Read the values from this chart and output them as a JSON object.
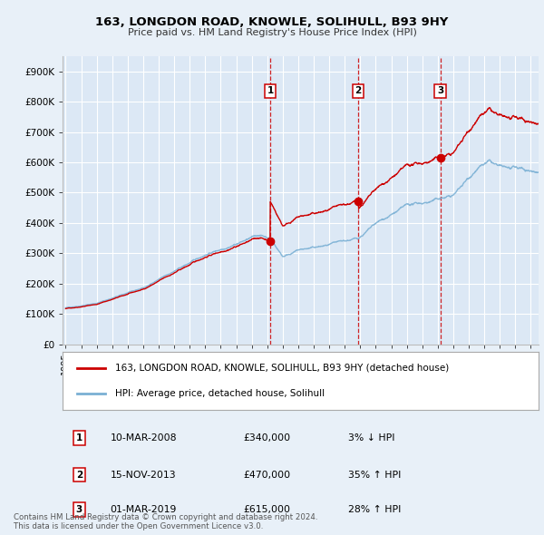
{
  "title": "163, LONGDON ROAD, KNOWLE, SOLIHULL, B93 9HY",
  "subtitle": "Price paid vs. HM Land Registry's House Price Index (HPI)",
  "ylabel_ticks": [
    "£0",
    "£100K",
    "£200K",
    "£300K",
    "£400K",
    "£500K",
    "£600K",
    "£700K",
    "£800K",
    "£900K"
  ],
  "ytick_values": [
    0,
    100000,
    200000,
    300000,
    400000,
    500000,
    600000,
    700000,
    800000,
    900000
  ],
  "ylim": [
    0,
    950000
  ],
  "xlim_start": 1994.8,
  "xlim_end": 2025.5,
  "background_color": "#e8f0f8",
  "plot_bg_color": "#dce8f5",
  "grid_color": "#ffffff",
  "transactions": [
    {
      "num": 1,
      "date": "10-MAR-2008",
      "price": 340000,
      "year": 2008.19,
      "pct": "3%",
      "dir": "↓"
    },
    {
      "num": 2,
      "date": "15-NOV-2013",
      "price": 470000,
      "year": 2013.87,
      "pct": "35%",
      "dir": "↑"
    },
    {
      "num": 3,
      "date": "01-MAR-2019",
      "price": 615000,
      "year": 2019.16,
      "pct": "28%",
      "dir": "↑"
    }
  ],
  "legend_line1": "163, LONGDON ROAD, KNOWLE, SOLIHULL, B93 9HY (detached house)",
  "legend_line2": "HPI: Average price, detached house, Solihull",
  "footer1": "Contains HM Land Registry data © Crown copyright and database right 2024.",
  "footer2": "This data is licensed under the Open Government Licence v3.0.",
  "red_color": "#cc0000",
  "blue_color": "#7ab0d4",
  "table_rows": [
    {
      "num": "1",
      "date": "10-MAR-2008",
      "price": "£340,000",
      "pct": "3% ↓ HPI"
    },
    {
      "num": "2",
      "date": "15-NOV-2013",
      "price": "£470,000",
      "pct": "35% ↑ HPI"
    },
    {
      "num": "3",
      "date": "01-MAR-2019",
      "price": "£615,000",
      "pct": "28% ↑ HPI"
    }
  ]
}
